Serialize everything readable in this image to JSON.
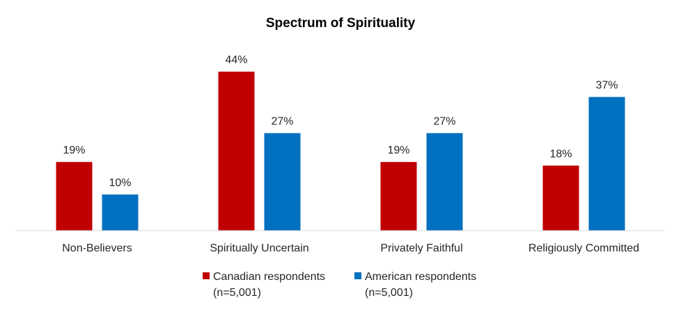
{
  "chart_data": {
    "type": "bar",
    "title": "Spectrum of Spirituality",
    "categories": [
      "Non-Believers",
      "Spiritually Uncertain",
      "Privately Faithful",
      "Religiously Committed"
    ],
    "series": [
      {
        "name": "Canadian respondents (n=5,001)",
        "legend_lines": [
          "Canadian respondents",
          "(n=5,001)"
        ],
        "color": "#C00000",
        "values": [
          19,
          44,
          19,
          18
        ],
        "labels": [
          "19%",
          "44%",
          "19%",
          "18%"
        ]
      },
      {
        "name": "American respondents (n=5,001)",
        "legend_lines": [
          "American respondents",
          "(n=5,001)"
        ],
        "color": "#0070C0",
        "values": [
          10,
          27,
          27,
          37
        ],
        "labels": [
          "10%",
          "27%",
          "27%",
          "37%"
        ]
      }
    ],
    "ylim": [
      0,
      50
    ],
    "grid": false,
    "legend_position": "bottom"
  }
}
